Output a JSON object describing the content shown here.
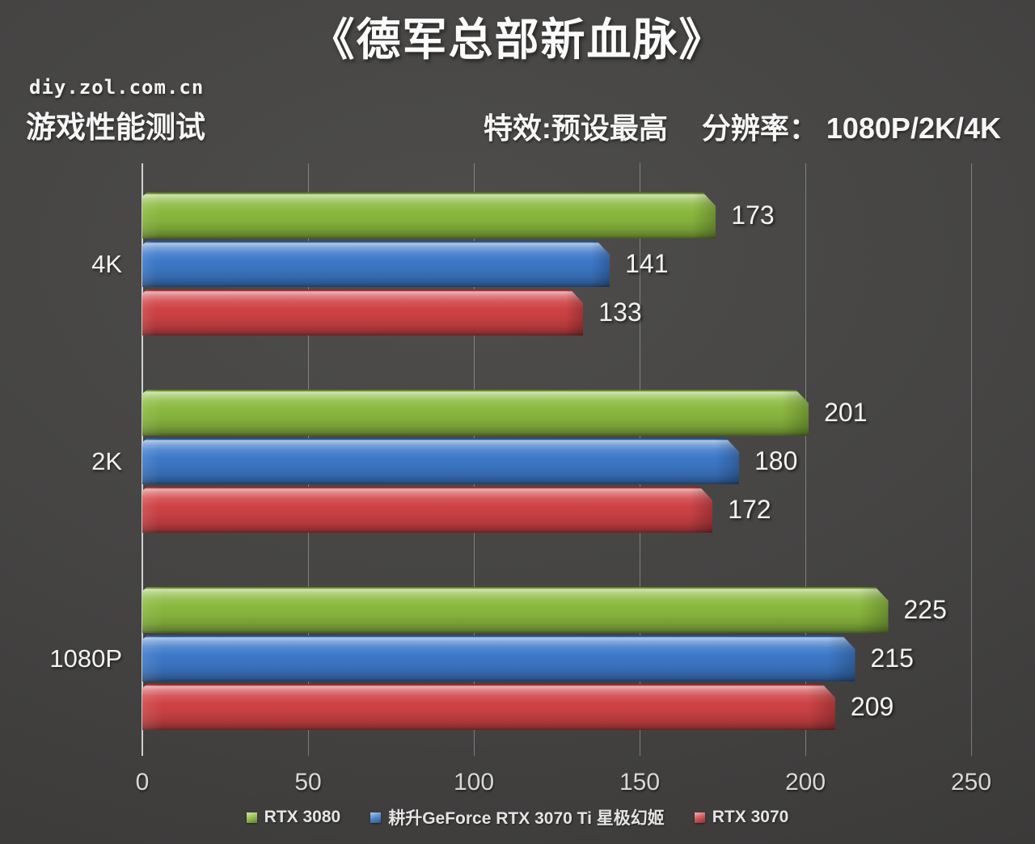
{
  "header": {
    "title": "《德军总部新血脉》",
    "site": "diy.zol.com.cn",
    "subtitle": "游戏性能测试",
    "settings_quality": "特效:预设最高",
    "settings_resolution": "分辨率： 1080P/2K/4K"
  },
  "chart_data": {
    "type": "bar",
    "orientation": "horizontal",
    "title": "《德军总部新血脉》",
    "subtitle": "游戏性能测试",
    "units": "fps",
    "categories": [
      "4K",
      "2K",
      "1080P"
    ],
    "series": [
      {
        "name": "RTX 3080",
        "color": "#8ab93e",
        "values": [
          173,
          201,
          225
        ]
      },
      {
        "name": "耕升GeForce RTX 3070 Ti 星极幻姬",
        "color": "#3d79c9",
        "values": [
          141,
          180,
          215
        ]
      },
      {
        "name": "RTX 3070",
        "color": "#cf4245",
        "values": [
          133,
          172,
          209
        ]
      }
    ],
    "xlim": [
      0,
      250
    ],
    "xticks": [
      0,
      50,
      100,
      150,
      200,
      250
    ],
    "grid": true,
    "value_labels": true,
    "legend_position": "bottom",
    "background_color": "#454443",
    "text_color": "#f0f0f0"
  }
}
